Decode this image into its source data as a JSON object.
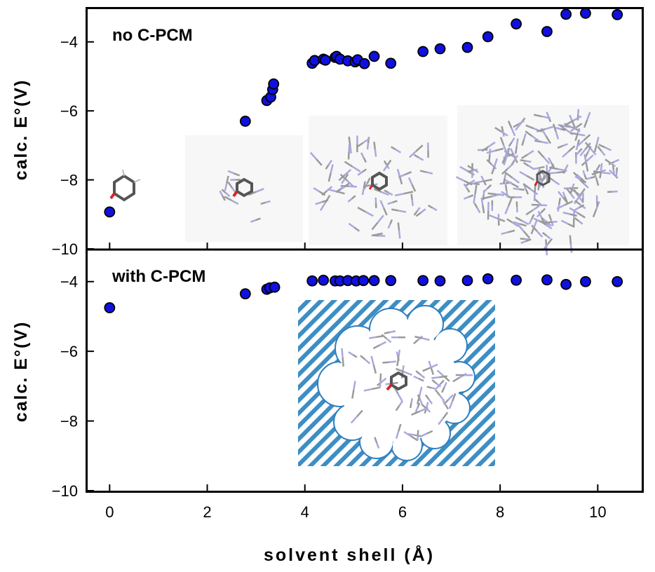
{
  "chart_data": [
    {
      "type": "scatter",
      "panel_label": "no C-PCM",
      "xlabel": "solvent shell (Å)",
      "ylabel": "calc. E°(V)",
      "xlim": [
        -0.45,
        10.9
      ],
      "ylim": [
        -10,
        -3.05
      ],
      "yticks": [
        -4,
        -6,
        -8,
        -10
      ],
      "ytick_labels": [
        "−4",
        "−6",
        "−8",
        "−10"
      ],
      "marker_color": "#1010e0",
      "points": [
        [
          0.0,
          -8.93
        ],
        [
          2.78,
          -6.3
        ],
        [
          3.22,
          -5.7
        ],
        [
          3.3,
          -5.6
        ],
        [
          3.34,
          -5.38
        ],
        [
          3.36,
          -5.22
        ],
        [
          4.15,
          -4.62
        ],
        [
          4.2,
          -4.54
        ],
        [
          4.38,
          -4.5
        ],
        [
          4.42,
          -4.53
        ],
        [
          4.62,
          -4.45
        ],
        [
          4.65,
          -4.42
        ],
        [
          4.72,
          -4.5
        ],
        [
          4.88,
          -4.55
        ],
        [
          5.03,
          -4.58
        ],
        [
          5.08,
          -4.52
        ],
        [
          5.22,
          -4.63
        ],
        [
          5.42,
          -4.42
        ],
        [
          5.76,
          -4.62
        ],
        [
          6.42,
          -4.28
        ],
        [
          6.77,
          -4.2
        ],
        [
          7.33,
          -4.16
        ],
        [
          7.75,
          -3.85
        ],
        [
          8.33,
          -3.48
        ],
        [
          8.96,
          -3.7
        ],
        [
          9.35,
          -3.2
        ],
        [
          9.75,
          -3.17
        ],
        [
          10.4,
          -3.21
        ]
      ]
    },
    {
      "type": "scatter",
      "panel_label": "with C-PCM",
      "xlabel": "solvent shell (Å)",
      "ylabel": "calc. E°(V)",
      "xlim": [
        -0.45,
        10.9
      ],
      "ylim": [
        -10,
        -3.1
      ],
      "xticks": [
        0,
        2,
        4,
        6,
        8,
        10
      ],
      "xtick_labels": [
        "0",
        "2",
        "4",
        "6",
        "8",
        "10"
      ],
      "yticks": [
        -4,
        -6,
        -8,
        -10
      ],
      "ytick_labels": [
        "−4",
        "−6",
        "−8",
        "−10"
      ],
      "marker_color": "#1010e0",
      "points": [
        [
          0.0,
          -4.75
        ],
        [
          2.78,
          -4.35
        ],
        [
          3.22,
          -4.22
        ],
        [
          3.28,
          -4.18
        ],
        [
          3.38,
          -4.16
        ],
        [
          4.15,
          -3.98
        ],
        [
          4.38,
          -3.96
        ],
        [
          4.62,
          -3.98
        ],
        [
          4.72,
          -3.98
        ],
        [
          4.88,
          -3.97
        ],
        [
          5.05,
          -3.98
        ],
        [
          5.2,
          -3.97
        ],
        [
          5.42,
          -3.97
        ],
        [
          5.76,
          -3.97
        ],
        [
          6.42,
          -3.97
        ],
        [
          6.77,
          -3.98
        ],
        [
          7.33,
          -3.97
        ],
        [
          7.75,
          -3.92
        ],
        [
          8.33,
          -3.96
        ],
        [
          8.96,
          -3.95
        ],
        [
          9.35,
          -4.08
        ],
        [
          9.75,
          -4.0
        ],
        [
          10.4,
          -4.0
        ]
      ]
    }
  ]
}
